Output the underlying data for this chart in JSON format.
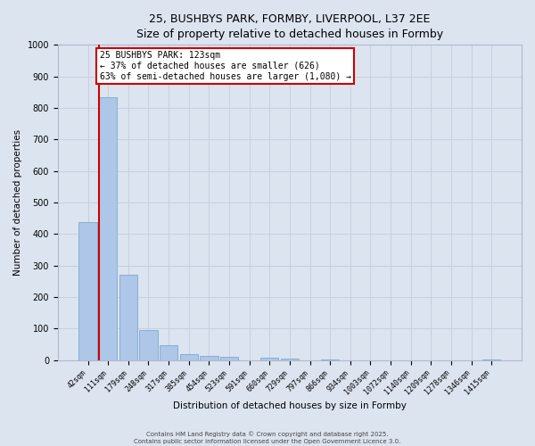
{
  "title_line1": "25, BUSHBYS PARK, FORMBY, LIVERPOOL, L37 2EE",
  "title_line2": "Size of property relative to detached houses in Formby",
  "xlabel": "Distribution of detached houses by size in Formby",
  "ylabel": "Number of detached properties",
  "categories": [
    "42sqm",
    "111sqm",
    "179sqm",
    "248sqm",
    "317sqm",
    "385sqm",
    "454sqm",
    "523sqm",
    "591sqm",
    "660sqm",
    "729sqm",
    "797sqm",
    "866sqm",
    "934sqm",
    "1003sqm",
    "1072sqm",
    "1140sqm",
    "1209sqm",
    "1278sqm",
    "1346sqm",
    "1415sqm"
  ],
  "values": [
    437,
    833,
    270,
    95,
    47,
    20,
    14,
    10,
    0,
    7,
    4,
    0,
    1,
    0,
    0,
    0,
    0,
    0,
    0,
    0,
    2
  ],
  "bar_color": "#aec6e8",
  "bar_edge_color": "#7aaad0",
  "vline_color": "#cc0000",
  "annotation_box_text": "25 BUSHBYS PARK: 123sqm\n← 37% of detached houses are smaller (626)\n63% of semi-detached houses are larger (1,080) →",
  "annotation_box_edge_color": "#cc0000",
  "annotation_box_facecolor": "white",
  "ylim": [
    0,
    1000
  ],
  "yticks": [
    0,
    100,
    200,
    300,
    400,
    500,
    600,
    700,
    800,
    900,
    1000
  ],
  "grid_color": "#c8d0e0",
  "bg_color": "#dce4f0",
  "title_fontsize": 9,
  "axis_label_fontsize": 7.5,
  "tick_fontsize": 6,
  "footer_line1": "Contains HM Land Registry data © Crown copyright and database right 2025.",
  "footer_line2": "Contains public sector information licensed under the Open Government Licence 3.0."
}
